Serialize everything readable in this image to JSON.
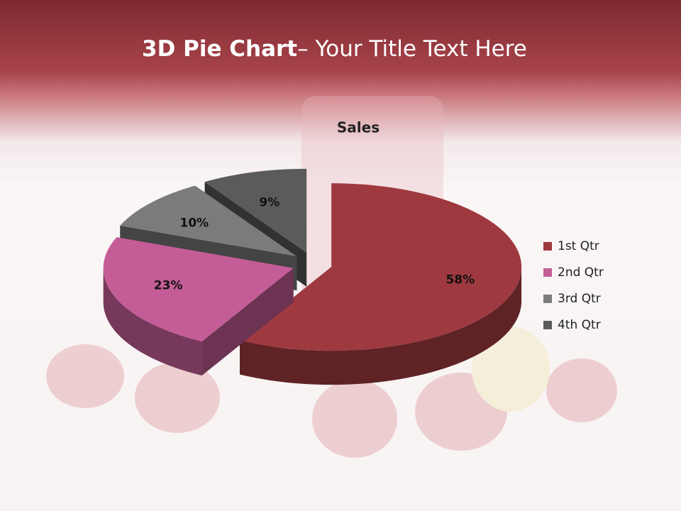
{
  "slide": {
    "title_bold": "3D Pie Chart",
    "title_rest": "– Your Title Text Here"
  },
  "chart_data": {
    "type": "pie",
    "title": "Sales",
    "categories": [
      "1st Qtr",
      "2nd Qtr",
      "3rd Qtr",
      "4th Qtr"
    ],
    "values": [
      58,
      23,
      10,
      9
    ],
    "value_labels": [
      "58%",
      "23%",
      "10%",
      "9%"
    ],
    "colors": [
      "#9e3a3f",
      "#c45d97",
      "#7b7b7b",
      "#5b5b5b"
    ],
    "legend": "right"
  }
}
